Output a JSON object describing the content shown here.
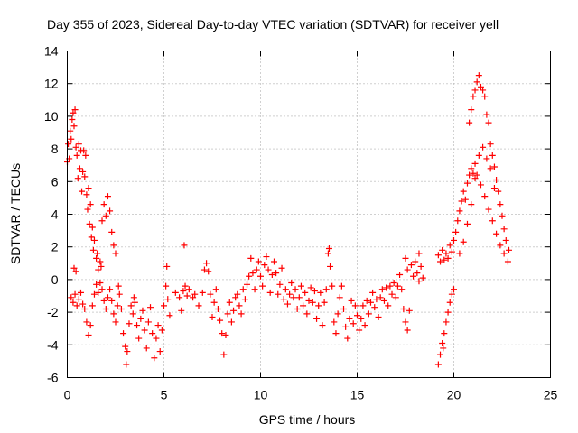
{
  "chart_data": {
    "type": "scatter",
    "title": "Day 355 of 2023, Sidereal Day-to-day VTEC variation (SDTVAR) for receiver yell",
    "xlabel": "GPS time / hours",
    "ylabel": "SDTVAR / TECUs",
    "xlim": [
      0,
      25
    ],
    "ylim": [
      -6,
      14
    ],
    "xticks": [
      0,
      5,
      10,
      15,
      20,
      25
    ],
    "yticks": [
      -6,
      -4,
      -2,
      0,
      2,
      4,
      6,
      8,
      10,
      12,
      14
    ],
    "grid": true,
    "legend": "none",
    "marker": "plus",
    "color": "#ff0000",
    "series": [
      {
        "name": "SDTVAR",
        "points": [
          [
            0.0,
            7.2
          ],
          [
            0.05,
            8.3
          ],
          [
            0.1,
            7.4
          ],
          [
            0.15,
            9.1
          ],
          [
            0.2,
            8.6
          ],
          [
            0.25,
            9.8
          ],
          [
            0.3,
            10.2
          ],
          [
            0.35,
            9.4
          ],
          [
            0.4,
            10.4
          ],
          [
            0.45,
            8.1
          ],
          [
            0.5,
            7.6
          ],
          [
            0.55,
            6.2
          ],
          [
            0.6,
            8.3
          ],
          [
            0.65,
            6.8
          ],
          [
            0.7,
            7.9
          ],
          [
            0.75,
            5.4
          ],
          [
            0.8,
            6.6
          ],
          [
            0.85,
            7.9
          ],
          [
            0.9,
            6.3
          ],
          [
            0.95,
            7.6
          ],
          [
            1.0,
            5.2
          ],
          [
            1.05,
            4.3
          ],
          [
            1.1,
            5.6
          ],
          [
            1.15,
            3.4
          ],
          [
            1.2,
            4.6
          ],
          [
            1.25,
            2.6
          ],
          [
            1.3,
            3.2
          ],
          [
            1.35,
            1.8
          ],
          [
            1.4,
            2.4
          ],
          [
            1.5,
            1.3
          ],
          [
            1.6,
            0.6
          ],
          [
            1.7,
            1.1
          ],
          [
            1.8,
            3.6
          ],
          [
            1.9,
            4.6
          ],
          [
            2.0,
            3.9
          ],
          [
            2.1,
            5.1
          ],
          [
            2.2,
            4.2
          ],
          [
            2.3,
            2.9
          ],
          [
            2.4,
            2.1
          ],
          [
            2.5,
            1.6
          ],
          [
            0.2,
            -1.1
          ],
          [
            0.3,
            -1.4
          ],
          [
            0.4,
            -0.9
          ],
          [
            0.5,
            -1.6
          ],
          [
            0.6,
            -1.2
          ],
          [
            0.7,
            -0.8
          ],
          [
            0.8,
            -1.5
          ],
          [
            0.9,
            -1.8
          ],
          [
            1.0,
            -2.6
          ],
          [
            1.1,
            -3.4
          ],
          [
            1.2,
            -2.8
          ],
          [
            1.3,
            -1.6
          ],
          [
            1.4,
            -0.9
          ],
          [
            1.5,
            -0.3
          ],
          [
            1.6,
            -0.8
          ],
          [
            1.7,
            -0.2
          ],
          [
            1.8,
            -0.6
          ],
          [
            1.9,
            -1.3
          ],
          [
            2.0,
            -1.8
          ],
          [
            2.1,
            -1.1
          ],
          [
            2.2,
            -0.6
          ],
          [
            2.3,
            -1.3
          ],
          [
            2.4,
            -2.1
          ],
          [
            2.5,
            -2.6
          ],
          [
            2.6,
            -1.6
          ],
          [
            2.7,
            -0.9
          ],
          [
            2.8,
            -1.8
          ],
          [
            2.9,
            -3.3
          ],
          [
            3.0,
            -4.1
          ],
          [
            3.05,
            -5.2
          ],
          [
            3.1,
            -4.4
          ],
          [
            3.2,
            -2.7
          ],
          [
            3.3,
            -1.6
          ],
          [
            3.4,
            -2.1
          ],
          [
            3.5,
            -1.4
          ],
          [
            3.6,
            -2.8
          ],
          [
            3.7,
            -3.6
          ],
          [
            3.8,
            -2.4
          ],
          [
            3.9,
            -1.9
          ],
          [
            4.0,
            -3.1
          ],
          [
            4.1,
            -4.2
          ],
          [
            4.2,
            -2.6
          ],
          [
            4.3,
            -1.7
          ],
          [
            4.4,
            -3.3
          ],
          [
            4.5,
            -4.8
          ],
          [
            4.6,
            -3.6
          ],
          [
            4.7,
            -2.8
          ],
          [
            4.8,
            -4.4
          ],
          [
            4.9,
            -3.1
          ],
          [
            5.0,
            -1.6
          ],
          [
            5.1,
            -0.4
          ],
          [
            5.15,
            0.8
          ],
          [
            5.2,
            -1.2
          ],
          [
            5.3,
            -2.2
          ],
          [
            0.35,
            0.7
          ],
          [
            0.45,
            0.5
          ],
          [
            1.55,
            1.6
          ],
          [
            1.75,
            0.8
          ],
          [
            2.65,
            -0.4
          ],
          [
            3.45,
            -1.1
          ],
          [
            5.6,
            -0.8
          ],
          [
            5.8,
            -1.1
          ],
          [
            5.9,
            -1.9
          ],
          [
            6.0,
            -0.7
          ],
          [
            6.05,
            2.1
          ],
          [
            6.1,
            -0.4
          ],
          [
            6.2,
            -1.0
          ],
          [
            6.3,
            -0.6
          ],
          [
            6.5,
            -1.1
          ],
          [
            6.6,
            -0.9
          ],
          [
            6.8,
            -1.6
          ],
          [
            7.0,
            -0.8
          ],
          [
            7.1,
            0.6
          ],
          [
            7.2,
            1.0
          ],
          [
            7.3,
            0.5
          ],
          [
            7.4,
            -0.9
          ],
          [
            7.5,
            -2.3
          ],
          [
            7.6,
            -1.4
          ],
          [
            7.7,
            -0.6
          ],
          [
            7.8,
            -1.8
          ],
          [
            7.9,
            -2.5
          ],
          [
            8.0,
            -3.3
          ],
          [
            8.1,
            -4.6
          ],
          [
            8.2,
            -3.4
          ],
          [
            8.3,
            -2.1
          ],
          [
            8.4,
            -1.4
          ],
          [
            8.5,
            -2.6
          ],
          [
            8.6,
            -1.9
          ],
          [
            8.7,
            -1.1
          ],
          [
            8.8,
            -0.9
          ],
          [
            8.9,
            -1.6
          ],
          [
            9.0,
            -2.1
          ],
          [
            9.1,
            -0.6
          ],
          [
            9.2,
            -1.2
          ],
          [
            9.3,
            -0.3
          ],
          [
            9.4,
            0.2
          ],
          [
            9.5,
            1.3
          ],
          [
            9.6,
            0.4
          ],
          [
            9.7,
            -0.6
          ],
          [
            9.8,
            0.6
          ],
          [
            9.9,
            1.1
          ],
          [
            10.0,
            0.2
          ],
          [
            10.1,
            -0.4
          ],
          [
            10.2,
            0.9
          ],
          [
            10.3,
            1.4
          ],
          [
            10.4,
            0.6
          ],
          [
            10.5,
            -0.8
          ],
          [
            10.6,
            0.3
          ],
          [
            10.7,
            1.1
          ],
          [
            10.8,
            0.4
          ],
          [
            10.9,
            -0.9
          ],
          [
            11.0,
            -0.3
          ],
          [
            11.1,
            0.7
          ],
          [
            11.2,
            -1.2
          ],
          [
            11.3,
            -0.6
          ],
          [
            11.4,
            -1.5
          ],
          [
            11.5,
            -0.9
          ],
          [
            11.6,
            -0.2
          ],
          [
            11.7,
            -1.1
          ],
          [
            11.8,
            -0.6
          ],
          [
            11.9,
            -1.8
          ],
          [
            12.0,
            -1.1
          ],
          [
            12.1,
            -0.4
          ],
          [
            12.2,
            -1.6
          ],
          [
            12.3,
            -0.8
          ],
          [
            12.4,
            -2.1
          ],
          [
            12.5,
            -1.3
          ],
          [
            12.6,
            -0.5
          ],
          [
            12.7,
            -1.4
          ],
          [
            12.8,
            -0.7
          ],
          [
            12.9,
            -2.4
          ],
          [
            13.0,
            -1.6
          ],
          [
            13.1,
            -0.8
          ],
          [
            13.2,
            -2.8
          ],
          [
            13.3,
            -1.4
          ],
          [
            13.4,
            -0.6
          ],
          [
            13.5,
            1.6
          ],
          [
            13.55,
            1.9
          ],
          [
            13.6,
            0.8
          ],
          [
            13.7,
            -0.4
          ],
          [
            13.8,
            -2.6
          ],
          [
            13.9,
            -3.3
          ],
          [
            14.0,
            -2.1
          ],
          [
            14.1,
            -1.1
          ],
          [
            14.2,
            -0.4
          ],
          [
            14.3,
            -1.8
          ],
          [
            14.4,
            -2.9
          ],
          [
            14.5,
            -3.6
          ],
          [
            14.6,
            -2.4
          ],
          [
            14.7,
            -1.3
          ],
          [
            14.8,
            -2.7
          ],
          [
            14.9,
            -1.6
          ],
          [
            15.0,
            -2.2
          ],
          [
            15.1,
            -3.1
          ],
          [
            15.2,
            -2.4
          ],
          [
            15.3,
            -1.6
          ],
          [
            15.4,
            -2.8
          ],
          [
            15.5,
            -1.3
          ],
          [
            15.6,
            -2.1
          ],
          [
            15.7,
            -1.4
          ],
          [
            15.8,
            -0.8
          ],
          [
            15.9,
            -1.7
          ],
          [
            16.0,
            -1.2
          ],
          [
            16.1,
            -2.3
          ],
          [
            16.2,
            -1.1
          ],
          [
            16.3,
            -0.6
          ],
          [
            16.4,
            -1.3
          ],
          [
            16.5,
            -0.5
          ],
          [
            16.6,
            -1.6
          ],
          [
            16.7,
            -0.4
          ],
          [
            16.8,
            -0.9
          ],
          [
            16.9,
            -0.2
          ],
          [
            17.0,
            -1.1
          ],
          [
            17.1,
            -0.4
          ],
          [
            17.2,
            0.3
          ],
          [
            17.3,
            -0.6
          ],
          [
            17.4,
            -1.8
          ],
          [
            17.5,
            -2.6
          ],
          [
            17.6,
            -3.1
          ],
          [
            17.7,
            -1.9
          ],
          [
            17.6,
            0.6
          ],
          [
            17.8,
            0.9
          ],
          [
            17.9,
            0.2
          ],
          [
            18.0,
            1.1
          ],
          [
            18.1,
            0.4
          ],
          [
            18.2,
            1.6
          ],
          [
            18.3,
            0.8
          ],
          [
            18.4,
            0.1
          ],
          [
            18.2,
            -0.1
          ],
          [
            17.5,
            1.3
          ],
          [
            19.2,
            1.5
          ],
          [
            19.3,
            1.1
          ],
          [
            19.4,
            1.8
          ],
          [
            19.5,
            1.2
          ],
          [
            19.6,
            1.6
          ],
          [
            19.7,
            1.3
          ],
          [
            19.8,
            2.1
          ],
          [
            19.9,
            1.7
          ],
          [
            20.0,
            2.4
          ],
          [
            20.1,
            2.9
          ],
          [
            20.2,
            3.6
          ],
          [
            20.3,
            4.2
          ],
          [
            20.4,
            4.8
          ],
          [
            20.5,
            5.4
          ],
          [
            20.6,
            4.9
          ],
          [
            20.7,
            5.9
          ],
          [
            20.8,
            6.4
          ],
          [
            20.9,
            6.8
          ],
          [
            21.0,
            6.5
          ],
          [
            21.1,
            7.1
          ],
          [
            20.3,
            1.6
          ],
          [
            20.5,
            2.3
          ],
          [
            20.7,
            3.4
          ],
          [
            20.9,
            4.6
          ],
          [
            21.1,
            6.2
          ],
          [
            21.3,
            7.6
          ],
          [
            21.5,
            8.1
          ],
          [
            21.7,
            7.4
          ],
          [
            21.9,
            6.8
          ],
          [
            22.1,
            5.6
          ],
          [
            20.8,
            9.6
          ],
          [
            20.9,
            10.4
          ],
          [
            21.0,
            11.2
          ],
          [
            21.1,
            11.6
          ],
          [
            21.2,
            12.1
          ],
          [
            21.3,
            12.5
          ],
          [
            21.4,
            11.8
          ],
          [
            21.5,
            11.6
          ],
          [
            21.6,
            11.2
          ],
          [
            21.7,
            10.1
          ],
          [
            21.8,
            9.6
          ],
          [
            21.9,
            8.3
          ],
          [
            22.0,
            7.6
          ],
          [
            22.1,
            6.9
          ],
          [
            22.2,
            6.1
          ],
          [
            22.3,
            5.4
          ],
          [
            22.4,
            4.6
          ],
          [
            22.5,
            3.9
          ],
          [
            22.6,
            3.1
          ],
          [
            22.7,
            2.4
          ],
          [
            21.2,
            6.4
          ],
          [
            21.4,
            5.8
          ],
          [
            21.6,
            5.1
          ],
          [
            21.8,
            4.3
          ],
          [
            22.0,
            3.6
          ],
          [
            22.2,
            2.8
          ],
          [
            22.4,
            2.1
          ],
          [
            22.6,
            1.6
          ],
          [
            22.8,
            1.1
          ],
          [
            22.85,
            1.8
          ],
          [
            19.2,
            -5.2
          ],
          [
            19.3,
            -4.6
          ],
          [
            19.4,
            -3.9
          ],
          [
            19.5,
            -3.3
          ],
          [
            19.6,
            -2.6
          ],
          [
            19.7,
            -2.0
          ],
          [
            19.8,
            -1.4
          ],
          [
            19.9,
            -0.9
          ],
          [
            20.0,
            -0.6
          ],
          [
            19.45,
            -4.2
          ]
        ]
      }
    ]
  }
}
